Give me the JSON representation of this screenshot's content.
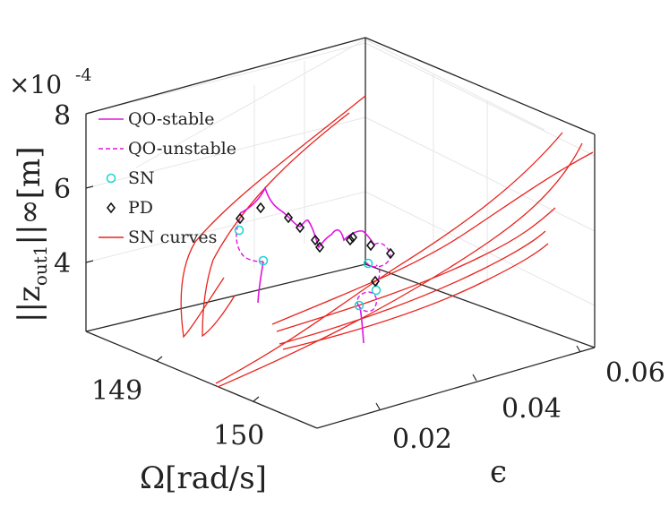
{
  "chart_data": {
    "type": "3d-line",
    "title": "",
    "z_exponent_label": "×10",
    "z_exponent_power": "-4",
    "xlabel": "Ω[rad/s]",
    "ylabel": "ϵ",
    "zlabel_base": "||z",
    "zlabel_sub": "out1",
    "zlabel_tail": "||∞[m]",
    "x_ticks": [
      "149",
      "150"
    ],
    "y_ticks": [
      "0.02",
      "0.04",
      "0.06"
    ],
    "z_ticks": [
      "4",
      "6",
      "8"
    ],
    "xlim": [
      148.5,
      150.6
    ],
    "ylim": [
      0.01,
      0.06
    ],
    "zlim": [
      2,
      9
    ],
    "legend_position": "top-left",
    "legend": [
      {
        "key": "qo_stable",
        "label": "QO-stable",
        "color": "#e014e0",
        "style": "solid"
      },
      {
        "key": "qo_unstable",
        "label": "QO-unstable",
        "color": "#e014e0",
        "style": "dashed"
      },
      {
        "key": "sn",
        "label": "SN",
        "color": "#19d3d3",
        "style": "circle"
      },
      {
        "key": "pd",
        "label": "PD",
        "color": "#111111",
        "style": "diamond"
      },
      {
        "key": "sn_curves",
        "label": "SN curves",
        "color": "#e8231e",
        "style": "solid"
      }
    ]
  }
}
